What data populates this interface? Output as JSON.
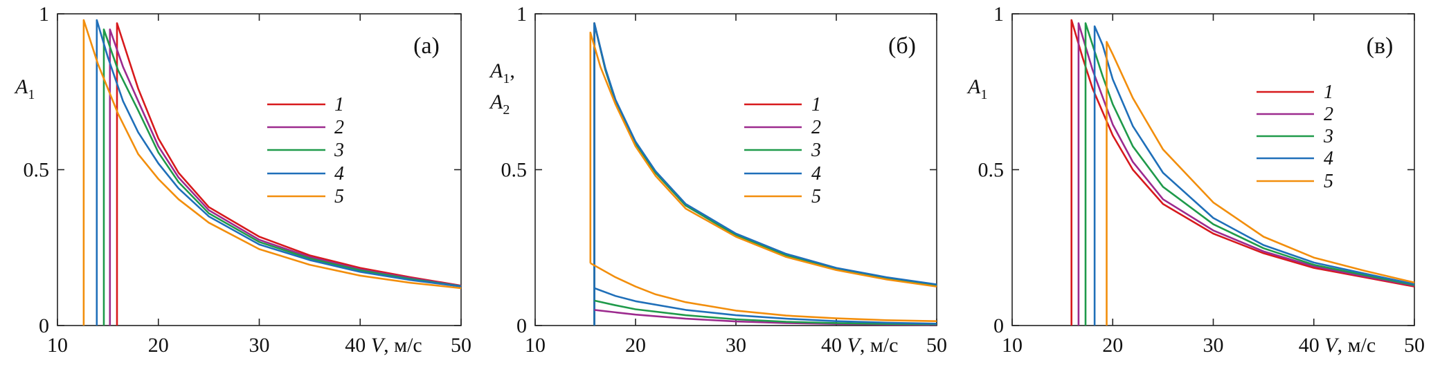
{
  "colors": {
    "1": "#d7191c",
    "2": "#9c2a8e",
    "3": "#1f9a4a",
    "4": "#1f6fb9",
    "5": "#f28e0c"
  },
  "chart_data": [
    {
      "type": "line",
      "panel_label": "(а)",
      "ylabel": "A",
      "ylabel_sub": "1",
      "ylabel_line2": "",
      "ylabel_line2_sub": "",
      "xlabel_var": "V",
      "xlabel_unit": ", м/с",
      "xlim": [
        10,
        50
      ],
      "ylim": [
        0,
        1
      ],
      "xticks": [
        10,
        20,
        30,
        40,
        50
      ],
      "yticks": [
        0,
        0.5,
        1
      ],
      "ytick_labels": [
        "0",
        "0.5",
        "1"
      ],
      "grid": false,
      "legend_position": "center-right",
      "series": [
        {
          "name": "1",
          "color_key": "1",
          "points": [
            [
              15.9,
              0
            ],
            [
              15.9,
              0.97
            ],
            [
              17,
              0.86
            ],
            [
              18,
              0.76
            ],
            [
              20,
              0.6
            ],
            [
              22,
              0.49
            ],
            [
              25,
              0.38
            ],
            [
              30,
              0.285
            ],
            [
              35,
              0.225
            ],
            [
              40,
              0.185
            ],
            [
              45,
              0.155
            ],
            [
              50,
              0.128
            ]
          ]
        },
        {
          "name": "2",
          "color_key": "2",
          "points": [
            [
              15.2,
              0
            ],
            [
              15.2,
              0.95
            ],
            [
              16.5,
              0.83
            ],
            [
              18,
              0.72
            ],
            [
              20,
              0.575
            ],
            [
              22,
              0.475
            ],
            [
              25,
              0.37
            ],
            [
              30,
              0.275
            ],
            [
              35,
              0.22
            ],
            [
              40,
              0.18
            ],
            [
              45,
              0.152
            ],
            [
              50,
              0.127
            ]
          ]
        },
        {
          "name": "3",
          "color_key": "3",
          "points": [
            [
              14.6,
              0
            ],
            [
              14.6,
              0.95
            ],
            [
              16,
              0.82
            ],
            [
              18,
              0.69
            ],
            [
              20,
              0.555
            ],
            [
              22,
              0.46
            ],
            [
              25,
              0.36
            ],
            [
              30,
              0.268
            ],
            [
              35,
              0.215
            ],
            [
              40,
              0.177
            ],
            [
              45,
              0.149
            ],
            [
              50,
              0.126
            ]
          ]
        },
        {
          "name": "4",
          "color_key": "4",
          "points": [
            [
              13.9,
              0
            ],
            [
              13.9,
              0.98
            ],
            [
              15,
              0.86
            ],
            [
              16.5,
              0.72
            ],
            [
              18,
              0.62
            ],
            [
              20,
              0.52
            ],
            [
              22,
              0.44
            ],
            [
              25,
              0.35
            ],
            [
              30,
              0.26
            ],
            [
              35,
              0.21
            ],
            [
              40,
              0.172
            ],
            [
              45,
              0.146
            ],
            [
              50,
              0.125
            ]
          ]
        },
        {
          "name": "5",
          "color_key": "5",
          "points": [
            [
              12.6,
              0
            ],
            [
              12.6,
              0.98
            ],
            [
              14,
              0.84
            ],
            [
              16,
              0.68
            ],
            [
              18,
              0.55
            ],
            [
              20,
              0.47
            ],
            [
              22,
              0.405
            ],
            [
              25,
              0.33
            ],
            [
              30,
              0.245
            ],
            [
              35,
              0.195
            ],
            [
              40,
              0.16
            ],
            [
              45,
              0.137
            ],
            [
              50,
              0.12
            ]
          ]
        }
      ]
    },
    {
      "type": "line",
      "panel_label": "(б)",
      "ylabel": "A",
      "ylabel_sub": "1",
      "ylabel_line2": "A",
      "ylabel_line2_sub": "2",
      "xlabel_var": "V",
      "xlabel_unit": ", м/с",
      "xlim": [
        10,
        50
      ],
      "ylim": [
        0,
        1
      ],
      "xticks": [
        10,
        20,
        30,
        40,
        50
      ],
      "yticks": [
        0,
        0.5,
        1
      ],
      "ytick_labels": [
        "0",
        "0.5",
        "1"
      ],
      "grid": false,
      "legend_position": "center-right",
      "series": [
        {
          "name": "1",
          "color_key": "1",
          "points": [
            [
              15.9,
              0
            ],
            [
              15.9,
              0.97
            ],
            [
              17,
              0.82
            ],
            [
              18,
              0.72
            ],
            [
              20,
              0.585
            ],
            [
              22,
              0.49
            ],
            [
              25,
              0.385
            ],
            [
              30,
              0.29
            ],
            [
              35,
              0.225
            ],
            [
              40,
              0.18
            ],
            [
              45,
              0.15
            ],
            [
              50,
              0.128
            ]
          ]
        },
        {
          "name": "2",
          "color_key": "2",
          "points": [
            [
              15.9,
              0
            ],
            [
              15.9,
              0.97
            ],
            [
              17,
              0.82
            ],
            [
              18,
              0.72
            ],
            [
              20,
              0.585
            ],
            [
              22,
              0.49
            ],
            [
              25,
              0.385
            ],
            [
              30,
              0.29
            ],
            [
              35,
              0.225
            ],
            [
              40,
              0.18
            ],
            [
              45,
              0.15
            ],
            [
              50,
              0.128
            ]
          ]
        },
        {
          "name": "3",
          "color_key": "3",
          "points": [
            [
              15.9,
              0
            ],
            [
              15.9,
              0.97
            ],
            [
              17,
              0.82
            ],
            [
              18,
              0.72
            ],
            [
              20,
              0.585
            ],
            [
              22,
              0.49
            ],
            [
              25,
              0.385
            ],
            [
              30,
              0.29
            ],
            [
              35,
              0.225
            ],
            [
              40,
              0.18
            ],
            [
              45,
              0.15
            ],
            [
              50,
              0.128
            ]
          ]
        },
        {
          "name": "4",
          "color_key": "4",
          "points": [
            [
              15.9,
              0
            ],
            [
              15.9,
              0.97
            ],
            [
              17,
              0.825
            ],
            [
              18,
              0.725
            ],
            [
              20,
              0.59
            ],
            [
              22,
              0.495
            ],
            [
              25,
              0.39
            ],
            [
              30,
              0.295
            ],
            [
              35,
              0.23
            ],
            [
              40,
              0.185
            ],
            [
              45,
              0.155
            ],
            [
              50,
              0.132
            ]
          ]
        },
        {
          "name": "5",
          "color_key": "5",
          "points": [
            [
              15.5,
              0.2
            ],
            [
              15.5,
              0.94
            ],
            [
              16.5,
              0.83
            ],
            [
              18,
              0.71
            ],
            [
              20,
              0.575
            ],
            [
              22,
              0.48
            ],
            [
              25,
              0.375
            ],
            [
              30,
              0.285
            ],
            [
              35,
              0.22
            ],
            [
              40,
              0.178
            ],
            [
              45,
              0.148
            ],
            [
              50,
              0.125
            ]
          ]
        },
        {
          "name": "2",
          "color_key": "2",
          "points": [
            [
              15.9,
              0.05
            ],
            [
              20,
              0.035
            ],
            [
              25,
              0.022
            ],
            [
              30,
              0.013
            ],
            [
              35,
              0.008
            ],
            [
              40,
              0.005
            ],
            [
              45,
              0.003
            ],
            [
              50,
              0.002
            ]
          ]
        },
        {
          "name": "3",
          "color_key": "3",
          "points": [
            [
              15.9,
              0.08
            ],
            [
              18,
              0.065
            ],
            [
              20,
              0.052
            ],
            [
              25,
              0.033
            ],
            [
              30,
              0.02
            ],
            [
              35,
              0.012
            ],
            [
              40,
              0.008
            ],
            [
              45,
              0.005
            ],
            [
              50,
              0.004
            ]
          ]
        },
        {
          "name": "4",
          "color_key": "4",
          "points": [
            [
              15.9,
              0.12
            ],
            [
              18,
              0.095
            ],
            [
              20,
              0.078
            ],
            [
              25,
              0.05
            ],
            [
              30,
              0.033
            ],
            [
              35,
              0.022
            ],
            [
              40,
              0.014
            ],
            [
              45,
              0.009
            ],
            [
              50,
              0.006
            ]
          ]
        },
        {
          "name": "5",
          "color_key": "5",
          "points": [
            [
              15.5,
              0.2
            ],
            [
              18,
              0.155
            ],
            [
              20,
              0.125
            ],
            [
              22,
              0.1
            ],
            [
              25,
              0.075
            ],
            [
              30,
              0.048
            ],
            [
              35,
              0.032
            ],
            [
              40,
              0.023
            ],
            [
              45,
              0.017
            ],
            [
              50,
              0.014
            ]
          ]
        }
      ]
    },
    {
      "type": "line",
      "panel_label": "(в)",
      "ylabel": "A",
      "ylabel_sub": "1",
      "ylabel_line2": "",
      "ylabel_line2_sub": "",
      "xlabel_var": "V",
      "xlabel_unit": ", м/с",
      "xlim": [
        10,
        50
      ],
      "ylim": [
        0,
        1
      ],
      "xticks": [
        10,
        20,
        30,
        40,
        50
      ],
      "yticks": [
        0,
        0.5,
        1
      ],
      "ytick_labels": [
        "0",
        "0.5",
        "1"
      ],
      "grid": false,
      "legend_position": "center-right",
      "series": [
        {
          "name": "1",
          "color_key": "1",
          "points": [
            [
              15.9,
              0
            ],
            [
              15.9,
              0.98
            ],
            [
              17,
              0.86
            ],
            [
              18,
              0.76
            ],
            [
              20,
              0.61
            ],
            [
              22,
              0.5
            ],
            [
              25,
              0.39
            ],
            [
              30,
              0.295
            ],
            [
              35,
              0.232
            ],
            [
              40,
              0.185
            ],
            [
              45,
              0.155
            ],
            [
              50,
              0.125
            ]
          ]
        },
        {
          "name": "2",
          "color_key": "2",
          "points": [
            [
              16.6,
              0
            ],
            [
              16.6,
              0.97
            ],
            [
              18,
              0.82
            ],
            [
              20,
              0.645
            ],
            [
              22,
              0.525
            ],
            [
              25,
              0.405
            ],
            [
              30,
              0.305
            ],
            [
              35,
              0.238
            ],
            [
              40,
              0.19
            ],
            [
              45,
              0.158
            ],
            [
              50,
              0.128
            ]
          ]
        },
        {
          "name": "3",
          "color_key": "3",
          "points": [
            [
              17.3,
              0
            ],
            [
              17.3,
              0.97
            ],
            [
              19,
              0.8
            ],
            [
              20,
              0.71
            ],
            [
              22,
              0.575
            ],
            [
              25,
              0.445
            ],
            [
              30,
              0.325
            ],
            [
              35,
              0.248
            ],
            [
              40,
              0.195
            ],
            [
              45,
              0.162
            ],
            [
              50,
              0.13
            ]
          ]
        },
        {
          "name": "4",
          "color_key": "4",
          "points": [
            [
              18.2,
              0
            ],
            [
              18.2,
              0.96
            ],
            [
              19,
              0.9
            ],
            [
              20,
              0.79
            ],
            [
              22,
              0.64
            ],
            [
              25,
              0.49
            ],
            [
              30,
              0.345
            ],
            [
              35,
              0.258
            ],
            [
              40,
              0.202
            ],
            [
              45,
              0.167
            ],
            [
              50,
              0.133
            ]
          ]
        },
        {
          "name": "5",
          "color_key": "5",
          "points": [
            [
              19.4,
              0
            ],
            [
              19.4,
              0.91
            ],
            [
              20,
              0.87
            ],
            [
              22,
              0.73
            ],
            [
              25,
              0.565
            ],
            [
              30,
              0.395
            ],
            [
              35,
              0.285
            ],
            [
              40,
              0.218
            ],
            [
              45,
              0.176
            ],
            [
              50,
              0.138
            ]
          ]
        }
      ]
    }
  ]
}
